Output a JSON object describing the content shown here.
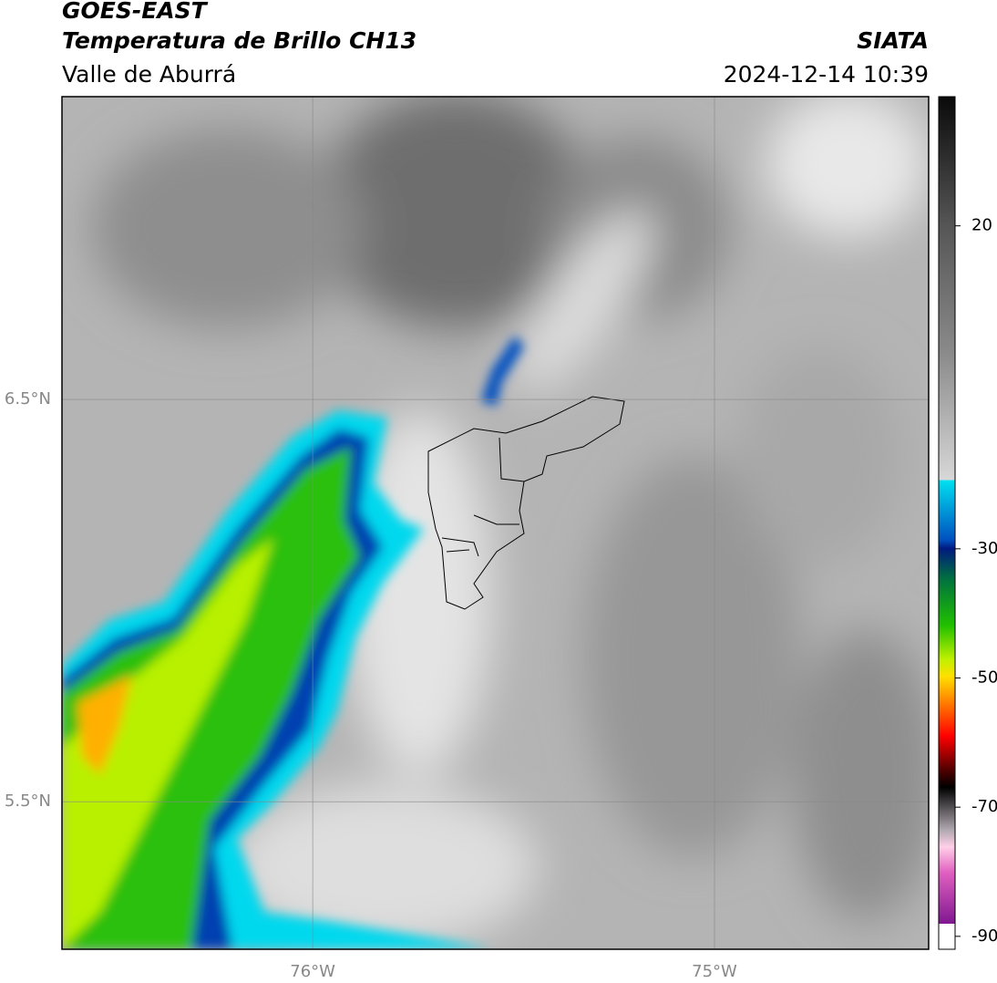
{
  "header": {
    "title": "GOES-EAST",
    "subtitle": "Temperatura de Brillo CH13",
    "region": "Valle de Aburrá",
    "source": "SIATA",
    "timestamp": "2024-12-14 10:39"
  },
  "map": {
    "xlim": [
      -76.624,
      -74.467
    ],
    "ylim": [
      5.133,
      7.253
    ],
    "xticks": [
      {
        "value": -76,
        "label": "76°W"
      },
      {
        "value": -75,
        "label": "75°W"
      }
    ],
    "yticks": [
      {
        "value": 6.5,
        "label": "6.5°N"
      },
      {
        "value": 5.5,
        "label": "5.5°N"
      }
    ],
    "grid": true
  },
  "colorbar": {
    "lim": [
      -92,
      40
    ],
    "ticks": [
      20,
      -30,
      -50,
      -70,
      -90
    ]
  }
}
